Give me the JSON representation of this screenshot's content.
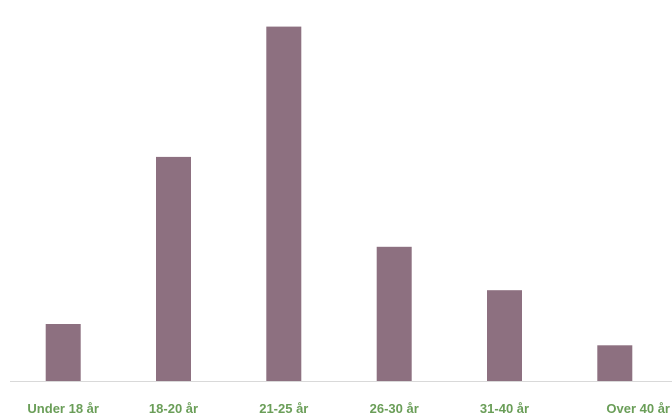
{
  "chart_data": {
    "type": "bar",
    "title": "",
    "xlabel": "",
    "ylabel": "",
    "categories": [
      "Under 18 år",
      "18-20 år",
      "21-25 år",
      "26-30 år",
      "31-40 år",
      "Over 40 år"
    ],
    "values": [
      59,
      232,
      367,
      139,
      94,
      37
    ],
    "ylim": [
      0,
      380
    ],
    "grid": false,
    "legend": "none",
    "colors": {
      "bar": "#8d7080",
      "axis": "#d9d9d9",
      "tick_label": "#6a9e58"
    }
  }
}
